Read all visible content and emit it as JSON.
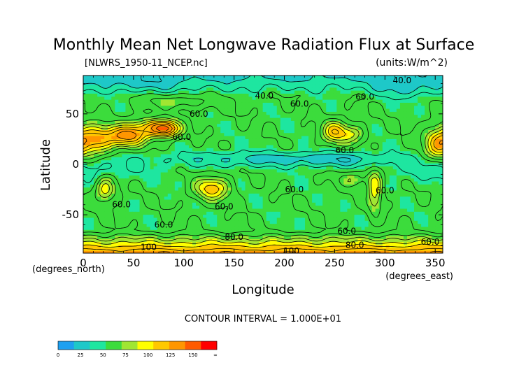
{
  "chart_data": {
    "type": "heatmap",
    "title": "Monthly Mean Net Longwave Radiation Flux at Surface",
    "subtitle_left": "[NLWRS_1950-11_NCEP.nc]",
    "subtitle_right": "(units:W/m^2)",
    "xlabel": "Longitude",
    "ylabel": "Latitude",
    "x_unit_label": "(degrees_east)",
    "y_unit_label": "(degrees_north)",
    "xlim": [
      0,
      357.5
    ],
    "ylim": [
      -88,
      88
    ],
    "x_ticks": [
      "0",
      "50",
      "100",
      "150",
      "200",
      "250",
      "300",
      "350"
    ],
    "y_ticks": [
      "50",
      "0",
      "-50"
    ],
    "contour_interval_text": "CONTOUR INTERVAL = 1.000E+01",
    "colorbar": {
      "labels": [
        "0",
        "25",
        "50",
        "75",
        "100",
        "125",
        "150",
        "∞"
      ],
      "colors": [
        "#1ea0f0",
        "#1ec8c8",
        "#1ee6a0",
        "#3cdc3c",
        "#a0e632",
        "#ffff00",
        "#ffc800",
        "#ff9600",
        "#ff5a00",
        "#ff0000"
      ]
    },
    "contour_labels": [
      {
        "text": "40.0",
        "lon": 317,
        "lat": 83
      },
      {
        "text": "40.0",
        "lon": 180,
        "lat": 68
      },
      {
        "text": "60.0",
        "lon": 215,
        "lat": 60
      },
      {
        "text": "60.0",
        "lon": 280,
        "lat": 67
      },
      {
        "text": "60.0",
        "lon": 115,
        "lat": 50
      },
      {
        "text": "60.0",
        "lon": 98,
        "lat": 27
      },
      {
        "text": "60.0",
        "lon": 260,
        "lat": 14
      },
      {
        "text": "60.0",
        "lon": 210,
        "lat": -25
      },
      {
        "text": "60.0",
        "lon": 300,
        "lat": -26
      },
      {
        "text": "60.0",
        "lon": 38,
        "lat": -40
      },
      {
        "text": "60.0",
        "lon": 140,
        "lat": -42
      },
      {
        "text": "60.0",
        "lon": 80,
        "lat": -60
      },
      {
        "text": "60.0",
        "lon": 262,
        "lat": -66
      },
      {
        "text": "80.0",
        "lon": 150,
        "lat": -72
      },
      {
        "text": "80.0",
        "lon": 270,
        "lat": -80
      },
      {
        "text": "60.0",
        "lon": 345,
        "lat": -77
      },
      {
        "text": "100",
        "lon": 65,
        "lat": -82
      },
      {
        "text": "100",
        "lon": 207,
        "lat": -86
      }
    ]
  }
}
